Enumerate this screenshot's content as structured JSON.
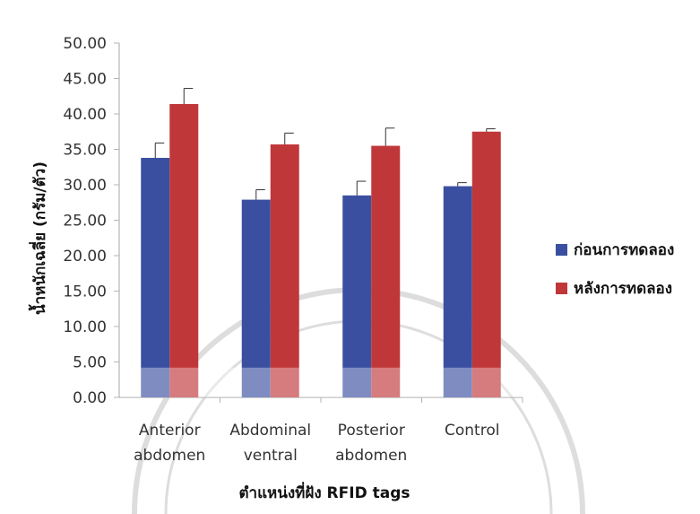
{
  "colors": {
    "before": "#3b4fa0",
    "after": "#c0373a",
    "axis": "#b5b5b5",
    "watermark": "#c8c8c8"
  },
  "chart_data": {
    "type": "bar",
    "categories": [
      [
        "Anterior",
        "abdomen"
      ],
      [
        "Abdominal",
        "ventral"
      ],
      [
        "Posterior",
        "abdomen"
      ],
      [
        "Control"
      ]
    ],
    "series": [
      {
        "name": "ก่อนการทดลอง",
        "values": [
          33.8,
          27.9,
          28.5,
          29.8
        ],
        "error": [
          2.1,
          1.4,
          2.0,
          0.5
        ]
      },
      {
        "name": "หลังการทดลอง",
        "values": [
          41.4,
          35.7,
          35.5,
          37.5
        ],
        "error": [
          2.2,
          1.6,
          2.5,
          0.4
        ]
      }
    ],
    "ylim": [
      0,
      50
    ],
    "yticks": [
      0,
      5,
      10,
      15,
      20,
      25,
      30,
      35,
      40,
      45,
      50
    ],
    "ytick_labels": [
      "0.00",
      "5.00",
      "10.00",
      "15.00",
      "20.00",
      "25.00",
      "30.00",
      "35.00",
      "40.00",
      "45.00",
      "50.00"
    ],
    "xlabel": "ตำแหน่งที่ฝัง RFID tags",
    "ylabel": "น้ำหนักเฉลี่ย (กรัม/ตัว)",
    "legend_position": "right",
    "grid": false
  }
}
